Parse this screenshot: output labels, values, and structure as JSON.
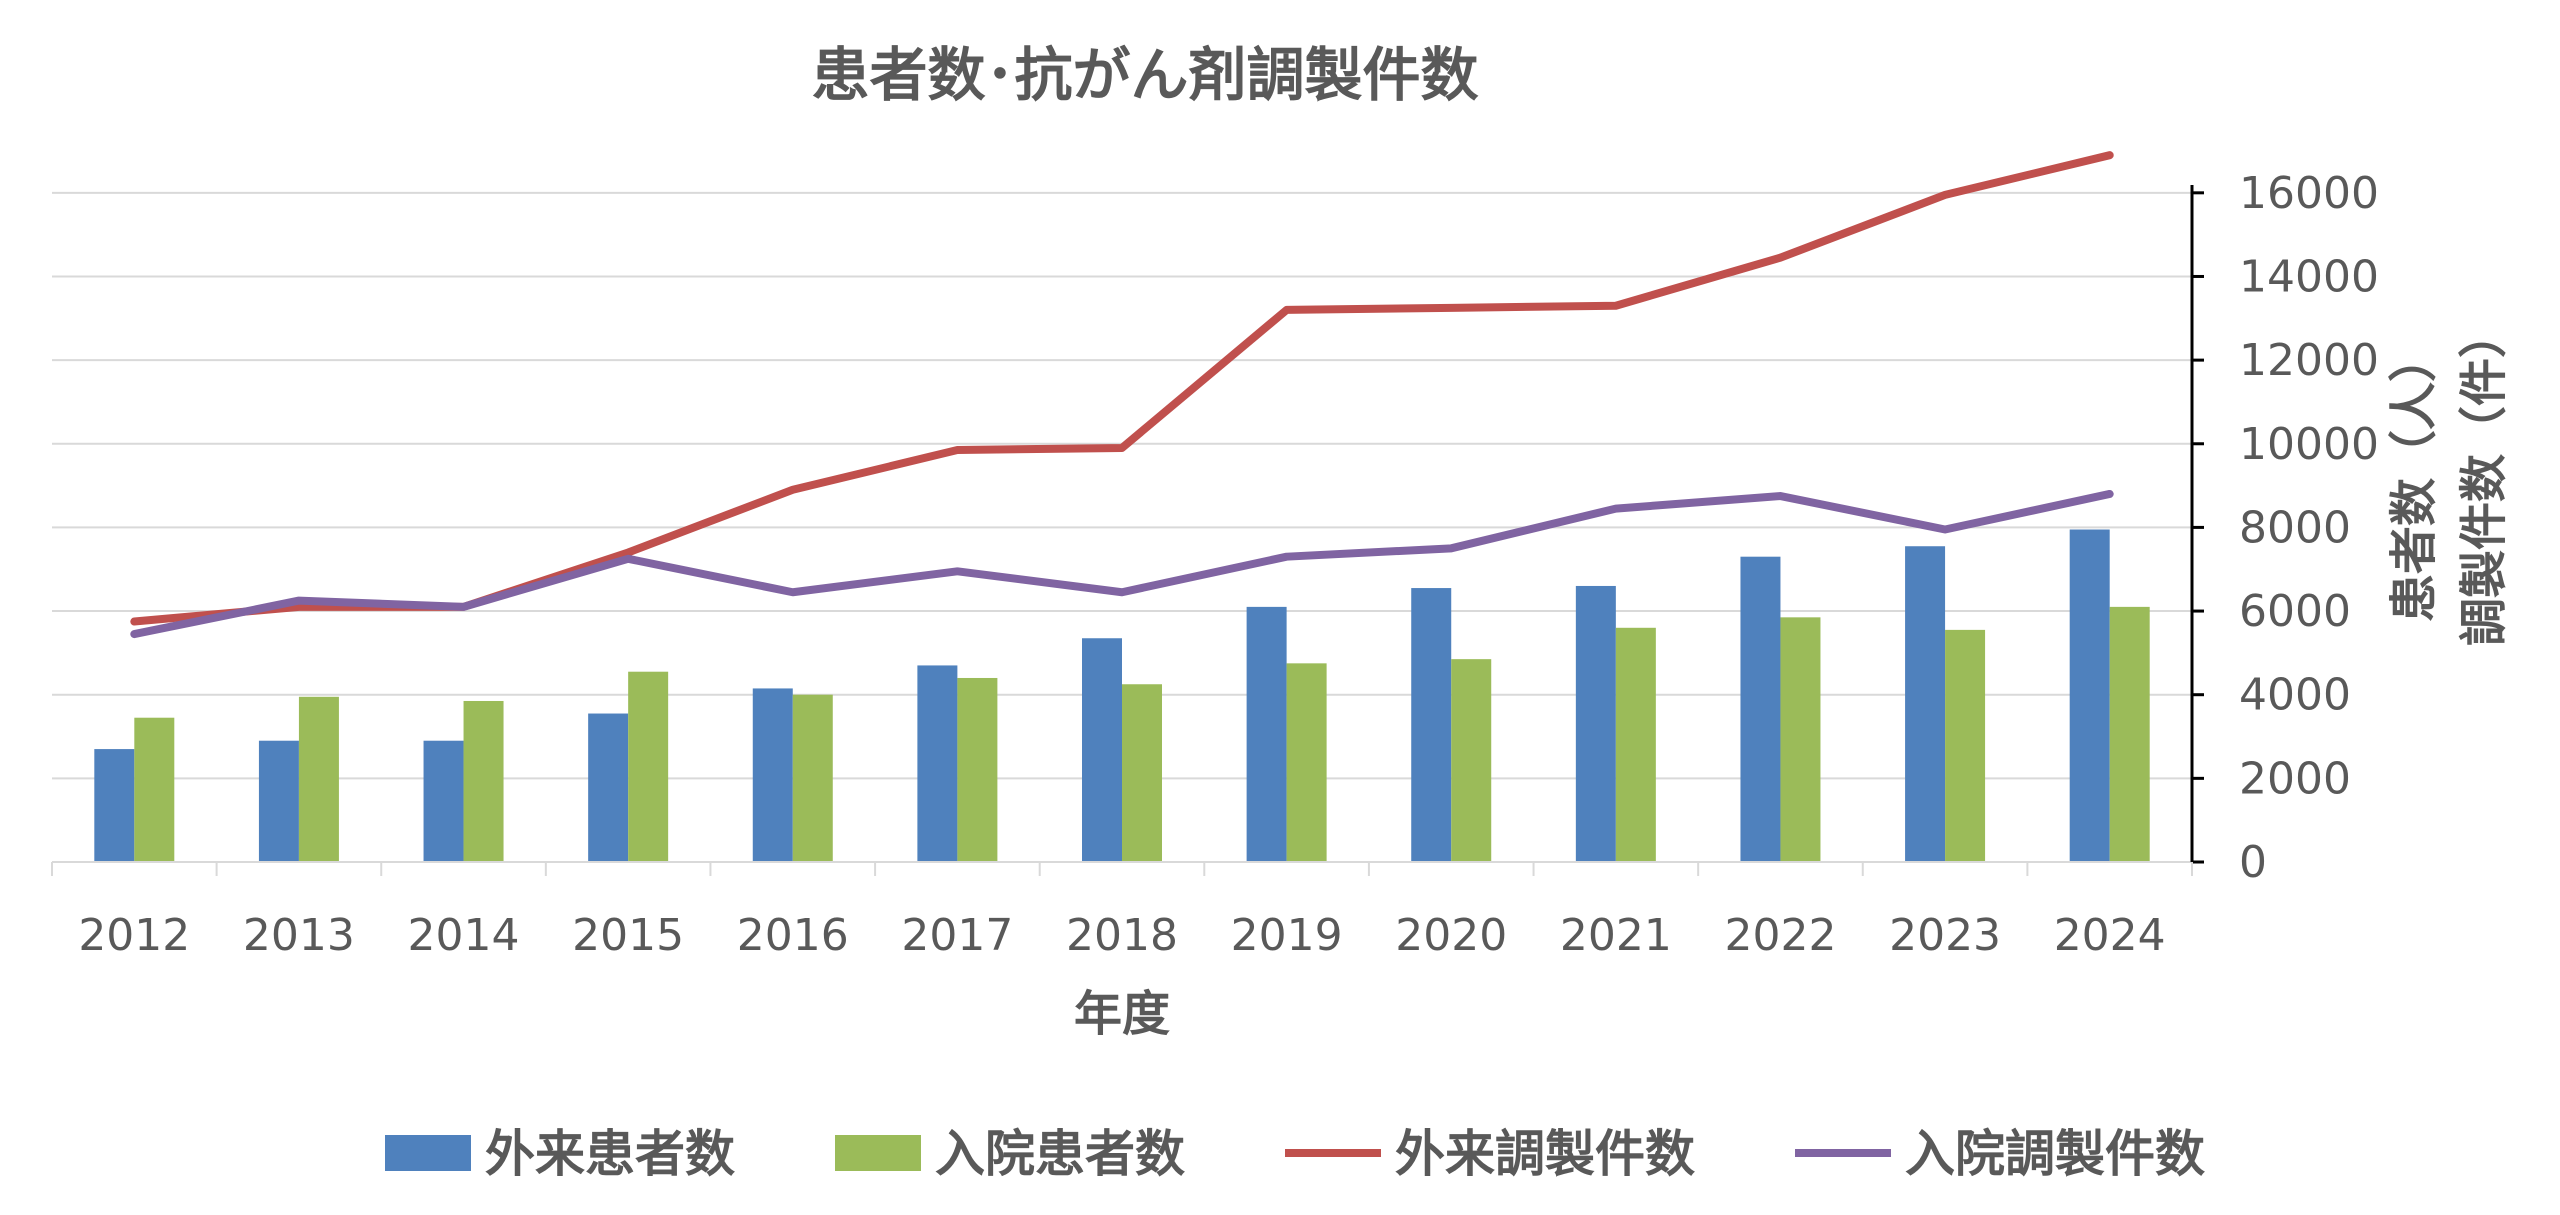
{
  "chart_data": {
    "type": "bar",
    "title": "患者数･抗がん剤調製件数",
    "xlabel": "年度",
    "ylabel_lines": [
      "患者数（人）",
      "調製件数（件）"
    ],
    "categories": [
      "2012",
      "2013",
      "2014",
      "2015",
      "2016",
      "2017",
      "2018",
      "2019",
      "2020",
      "2021",
      "2022",
      "2023",
      "2024"
    ],
    "ylim": [
      0,
      17000
    ],
    "yticks": [
      "0",
      "2000",
      "4000",
      "6000",
      "8000",
      "10000",
      "12000",
      "14000",
      "16000"
    ],
    "ytick_values": [
      0,
      2000,
      4000,
      6000,
      8000,
      10000,
      12000,
      14000,
      16000
    ],
    "y_axis_side": "right",
    "grid": true,
    "legend_position": "bottom",
    "series": [
      {
        "name": "外来患者数",
        "kind": "bar",
        "color": "#4f81bd",
        "values": [
          2700,
          2900,
          2900,
          3550,
          4150,
          4700,
          5350,
          6100,
          6550,
          6600,
          7300,
          7550,
          7950
        ]
      },
      {
        "name": "入院患者数",
        "kind": "bar",
        "color": "#9bbb59",
        "values": [
          3450,
          3950,
          3850,
          4550,
          4000,
          4400,
          4250,
          4750,
          4850,
          5600,
          5850,
          5550,
          6100
        ]
      },
      {
        "name": "外来調製件数",
        "kind": "line",
        "color": "#c0504d",
        "values": [
          5750,
          6100,
          6100,
          7400,
          8900,
          9850,
          9900,
          13200,
          13250,
          13300,
          14450,
          15950,
          16900
        ]
      },
      {
        "name": "入院調製件数",
        "kind": "line",
        "color": "#8064a2",
        "values": [
          5450,
          6250,
          6100,
          7250,
          6450,
          6950,
          6450,
          7300,
          7500,
          8450,
          8750,
          7950,
          8800
        ]
      }
    ]
  }
}
